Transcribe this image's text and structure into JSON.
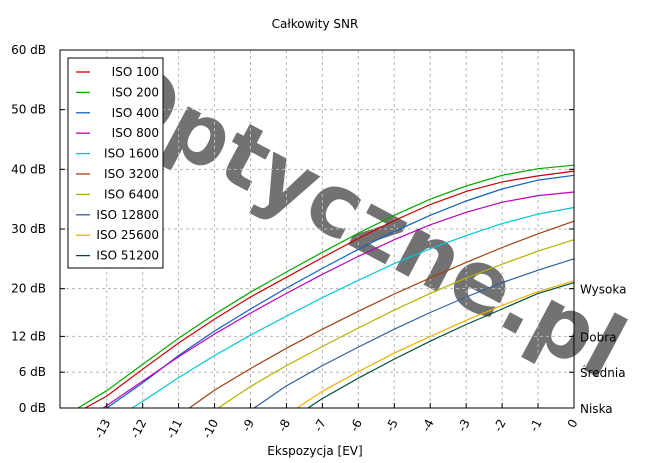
{
  "chart_data": {
    "type": "line",
    "title": "Całkowity SNR",
    "xlabel": "Ekspozycja [EV]",
    "ylabel": "",
    "x_ticks": [
      "-13",
      "-12",
      "-11",
      "-10",
      "-9",
      "-8",
      "-7",
      "-6",
      "-5",
      "-4",
      "-3",
      "-2",
      "-1",
      "0"
    ],
    "xlim": [
      -14.3,
      0
    ],
    "y_ticks": [
      {
        "value": 0,
        "label": "0 dB"
      },
      {
        "value": 6,
        "label": "6 dB"
      },
      {
        "value": 12,
        "label": "12 dB"
      },
      {
        "value": 20,
        "label": "20 dB"
      },
      {
        "value": 30,
        "label": "30 dB"
      },
      {
        "value": 40,
        "label": "40 dB"
      },
      {
        "value": 50,
        "label": "50 dB"
      },
      {
        "value": 60,
        "label": "60 dB"
      }
    ],
    "ylim": [
      0,
      60
    ],
    "right_labels": [
      {
        "value": 20,
        "label": "Wysoka"
      },
      {
        "value": 12,
        "label": "Dobra"
      },
      {
        "value": 6,
        "label": "Średnia"
      },
      {
        "value": 0,
        "label": "Niska"
      }
    ],
    "grid": true,
    "legend_position": "top-left",
    "watermark": "Optyczne.pl",
    "series": [
      {
        "name": "ISO 100",
        "color": "#cc0000",
        "points": [
          [
            -13.6,
            0
          ],
          [
            -13,
            2
          ],
          [
            -12,
            6.5
          ],
          [
            -11,
            10.9
          ],
          [
            -10,
            14.9
          ],
          [
            -9,
            18.6
          ],
          [
            -8,
            21.9
          ],
          [
            -7,
            25.2
          ],
          [
            -6,
            28.4
          ],
          [
            -5,
            31.4
          ],
          [
            -4,
            34.1
          ],
          [
            -3,
            36.3
          ],
          [
            -2,
            37.9
          ],
          [
            -1,
            38.9
          ],
          [
            0,
            39.7
          ]
        ]
      },
      {
        "name": "ISO 200",
        "color": "#00aa00",
        "points": [
          [
            -13.8,
            0
          ],
          [
            -13,
            2.9
          ],
          [
            -12,
            7.3
          ],
          [
            -11,
            11.7
          ],
          [
            -10,
            15.7
          ],
          [
            -9,
            19.4
          ],
          [
            -8,
            22.8
          ],
          [
            -7,
            26.1
          ],
          [
            -6,
            29.3
          ],
          [
            -5,
            32.3
          ],
          [
            -4,
            35
          ],
          [
            -3,
            37.2
          ],
          [
            -2,
            39
          ],
          [
            -1,
            40.1
          ],
          [
            0,
            40.7
          ]
        ]
      },
      {
        "name": "ISO 400",
        "color": "#1060c0",
        "points": [
          [
            -13,
            0
          ],
          [
            -12,
            4.2
          ],
          [
            -11,
            8.8
          ],
          [
            -10,
            12.9
          ],
          [
            -9,
            16.6
          ],
          [
            -8,
            20.1
          ],
          [
            -7,
            23.4
          ],
          [
            -6,
            26.6
          ],
          [
            -5,
            29.6
          ],
          [
            -4,
            32.3
          ],
          [
            -3,
            34.7
          ],
          [
            -2,
            36.7
          ],
          [
            -1,
            38.2
          ],
          [
            0,
            39
          ]
        ]
      },
      {
        "name": "ISO 800",
        "color": "#c000c0",
        "points": [
          [
            -13.1,
            0
          ],
          [
            -12,
            4.5
          ],
          [
            -11,
            8.6
          ],
          [
            -10,
            12.4
          ],
          [
            -9,
            15.9
          ],
          [
            -8,
            19.2
          ],
          [
            -7,
            22.4
          ],
          [
            -6,
            25.4
          ],
          [
            -5,
            28.2
          ],
          [
            -4,
            30.7
          ],
          [
            -3,
            32.8
          ],
          [
            -2,
            34.5
          ],
          [
            -1,
            35.6
          ],
          [
            0,
            36.2
          ]
        ]
      },
      {
        "name": "ISO 1600",
        "color": "#00c8d8",
        "points": [
          [
            -12.3,
            0
          ],
          [
            -12,
            1.1
          ],
          [
            -11,
            5.1
          ],
          [
            -10,
            8.8
          ],
          [
            -9,
            12.2
          ],
          [
            -8,
            15.4
          ],
          [
            -7,
            18.5
          ],
          [
            -6,
            21.4
          ],
          [
            -5,
            24.2
          ],
          [
            -4,
            26.7
          ],
          [
            -3,
            28.9
          ],
          [
            -2,
            30.9
          ],
          [
            -1,
            32.5
          ],
          [
            0,
            33.6
          ]
        ]
      },
      {
        "name": "ISO 3200",
        "color": "#a04010",
        "points": [
          [
            -10.7,
            0
          ],
          [
            -10,
            3
          ],
          [
            -9,
            6.6
          ],
          [
            -8,
            10
          ],
          [
            -7,
            13.2
          ],
          [
            -6,
            16.2
          ],
          [
            -5,
            19.1
          ],
          [
            -4,
            21.8
          ],
          [
            -3,
            24.4
          ],
          [
            -2,
            26.9
          ],
          [
            -1,
            29.2
          ],
          [
            0,
            31.3
          ]
        ]
      },
      {
        "name": "ISO 6400",
        "color": "#b8b000",
        "points": [
          [
            -9.9,
            0
          ],
          [
            -9,
            3.6
          ],
          [
            -8,
            7.1
          ],
          [
            -7,
            10.3
          ],
          [
            -6,
            13.4
          ],
          [
            -5,
            16.4
          ],
          [
            -4,
            19.2
          ],
          [
            -3,
            21.8
          ],
          [
            -2,
            24.1
          ],
          [
            -1,
            26.3
          ],
          [
            0,
            28.2
          ]
        ]
      },
      {
        "name": "ISO 12800",
        "color": "#3060a0",
        "points": [
          [
            -8.9,
            0
          ],
          [
            -8,
            3.7
          ],
          [
            -7,
            7.1
          ],
          [
            -6,
            10.2
          ],
          [
            -5,
            13.2
          ],
          [
            -4,
            16
          ],
          [
            -3,
            18.6
          ],
          [
            -2,
            21
          ],
          [
            -1,
            23.1
          ],
          [
            0,
            25
          ]
        ]
      },
      {
        "name": "ISO 25600",
        "color": "#f0b000",
        "points": [
          [
            -7.7,
            0
          ],
          [
            -7,
            2.8
          ],
          [
            -6,
            6.1
          ],
          [
            -5,
            9.2
          ],
          [
            -4,
            12
          ],
          [
            -3,
            14.7
          ],
          [
            -2,
            17.2
          ],
          [
            -1,
            19.5
          ],
          [
            0,
            21.3
          ]
        ]
      },
      {
        "name": "ISO 51200",
        "color": "#005030",
        "points": [
          [
            -7.4,
            0
          ],
          [
            -7,
            1.6
          ],
          [
            -6,
            5
          ],
          [
            -5,
            8.2
          ],
          [
            -4,
            11.2
          ],
          [
            -3,
            14
          ],
          [
            -2,
            16.6
          ],
          [
            -1,
            19.2
          ],
          [
            0,
            21
          ]
        ]
      }
    ]
  }
}
